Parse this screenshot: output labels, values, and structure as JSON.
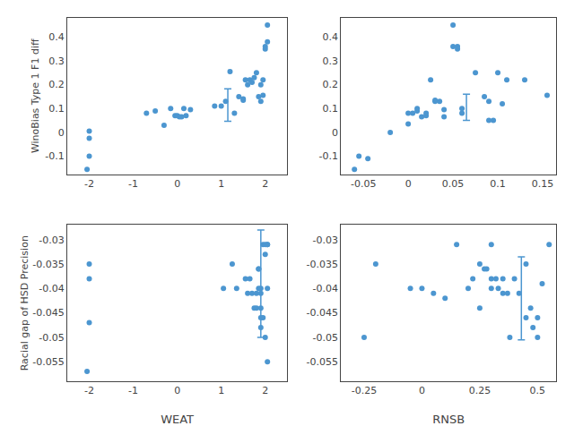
{
  "chart_data": [
    {
      "type": "scatter",
      "ylabel": "WinoBias Type 1 F1 diff",
      "color": "#4C96D0",
      "grid": false,
      "xlim": [
        -2.5,
        2.5
      ],
      "ylim": [
        -0.175,
        0.48
      ],
      "xticks": [
        -2,
        -1,
        0,
        1,
        2
      ],
      "yticks": [
        -0.1,
        0,
        0.1,
        0.2,
        0.3,
        0.4
      ],
      "x": [
        -2.05,
        -2.0,
        -2.0,
        -2.0,
        -0.7,
        -0.5,
        -0.3,
        -0.15,
        -0.05,
        0.0,
        0.05,
        0.1,
        0.15,
        0.2,
        0.3,
        0.85,
        1.0,
        1.1,
        1.2,
        1.3,
        1.4,
        1.5,
        1.5,
        1.55,
        1.6,
        1.65,
        1.7,
        1.75,
        1.8,
        1.85,
        1.9,
        1.9,
        1.95,
        1.95,
        2.0,
        2.0,
        2.05,
        2.05
      ],
      "values": [
        -0.155,
        -0.1,
        -0.025,
        0.005,
        0.08,
        0.09,
        0.03,
        0.1,
        0.07,
        0.07,
        0.065,
        0.065,
        0.1,
        0.07,
        0.095,
        0.11,
        0.11,
        0.13,
        0.255,
        0.08,
        0.15,
        0.135,
        0.14,
        0.22,
        0.2,
        0.22,
        0.21,
        0.23,
        0.25,
        0.15,
        0.13,
        0.2,
        0.22,
        0.155,
        0.36,
        0.35,
        0.45,
        0.38
      ],
      "error_bar": {
        "x": 1.15,
        "y": 0.115,
        "err": 0.068,
        "color": "#4C96D0"
      }
    },
    {
      "type": "scatter",
      "color": "#4C96D0",
      "grid": false,
      "xlim": [
        -0.075,
        0.165
      ],
      "ylim": [
        -0.175,
        0.48
      ],
      "xticks": [
        -0.05,
        0,
        0.05,
        0.1,
        0.15
      ],
      "yticks": [
        -0.1,
        0,
        0.1,
        0.2,
        0.3,
        0.4
      ],
      "x": [
        -0.06,
        -0.055,
        -0.045,
        -0.02,
        0.0,
        0.0,
        0.005,
        0.01,
        0.01,
        0.015,
        0.02,
        0.02,
        0.025,
        0.03,
        0.03,
        0.035,
        0.04,
        0.04,
        0.05,
        0.05,
        0.055,
        0.055,
        0.06,
        0.06,
        0.075,
        0.085,
        0.09,
        0.09,
        0.095,
        0.1,
        0.105,
        0.11,
        0.13,
        0.155
      ],
      "values": [
        -0.155,
        -0.1,
        -0.11,
        0.0,
        0.035,
        0.08,
        0.08,
        0.09,
        0.1,
        0.065,
        0.07,
        0.08,
        0.22,
        0.13,
        0.135,
        0.13,
        0.065,
        0.095,
        0.45,
        0.36,
        0.35,
        0.36,
        0.1,
        0.08,
        0.25,
        0.15,
        0.05,
        0.13,
        0.05,
        0.25,
        0.12,
        0.22,
        0.22,
        0.155
      ],
      "error_bar": {
        "x": 0.065,
        "y": 0.105,
        "err": 0.055,
        "color": "#4C96D0"
      }
    },
    {
      "type": "scatter",
      "xlabel": "WEAT",
      "ylabel": "Racial gap of HSD Precision",
      "color": "#4C96D0",
      "grid": false,
      "xlim": [
        -2.5,
        2.5
      ],
      "ylim": [
        -0.059,
        -0.027
      ],
      "xticks": [
        -2,
        -1,
        0,
        1,
        2
      ],
      "yticks": [
        -0.055,
        -0.05,
        -0.045,
        -0.04,
        -0.035,
        -0.03
      ],
      "x": [
        -2.05,
        -2.0,
        -2.0,
        -2.0,
        1.05,
        1.25,
        1.35,
        1.55,
        1.6,
        1.65,
        1.7,
        1.75,
        1.8,
        1.8,
        1.85,
        1.85,
        1.85,
        1.9,
        1.9,
        1.9,
        1.9,
        1.9,
        1.95,
        1.95,
        2.0,
        2.0,
        2.0,
        2.05,
        2.05,
        2.05,
        2.05
      ],
      "values": [
        -0.057,
        -0.047,
        -0.038,
        -0.035,
        -0.04,
        -0.035,
        -0.04,
        -0.038,
        -0.041,
        -0.038,
        -0.041,
        -0.044,
        -0.041,
        -0.044,
        -0.04,
        -0.036,
        -0.036,
        -0.04,
        -0.041,
        -0.044,
        -0.046,
        -0.048,
        -0.031,
        -0.046,
        -0.05,
        -0.031,
        -0.033,
        -0.04,
        -0.031,
        -0.055,
        -0.031
      ],
      "error_bar": {
        "x": 1.9,
        "y": -0.039,
        "err": 0.011,
        "color": "#4C96D0"
      }
    },
    {
      "type": "scatter",
      "xlabel": "RNSB",
      "color": "#4C96D0",
      "grid": false,
      "xlim": [
        -0.35,
        0.58
      ],
      "ylim": [
        -0.059,
        -0.027
      ],
      "xticks": [
        -0.25,
        0,
        0.25,
        0.5
      ],
      "yticks": [
        -0.055,
        -0.05,
        -0.045,
        -0.04,
        -0.035,
        -0.03
      ],
      "x": [
        -0.25,
        -0.2,
        -0.05,
        0.0,
        0.05,
        0.1,
        0.15,
        0.2,
        0.22,
        0.25,
        0.25,
        0.27,
        0.28,
        0.3,
        0.3,
        0.3,
        0.32,
        0.33,
        0.35,
        0.35,
        0.37,
        0.38,
        0.4,
        0.42,
        0.45,
        0.45,
        0.47,
        0.48,
        0.5,
        0.5,
        0.52,
        0.55
      ],
      "values": [
        -0.05,
        -0.035,
        -0.04,
        -0.04,
        -0.041,
        -0.042,
        -0.031,
        -0.04,
        -0.038,
        -0.044,
        -0.035,
        -0.036,
        -0.036,
        -0.04,
        -0.038,
        -0.031,
        -0.038,
        -0.04,
        -0.038,
        -0.041,
        -0.041,
        -0.05,
        -0.038,
        -0.041,
        -0.035,
        -0.046,
        -0.044,
        -0.048,
        -0.046,
        -0.05,
        -0.039,
        -0.031
      ],
      "error_bar": {
        "x": 0.43,
        "y": -0.042,
        "err": 0.0085,
        "color": "#4C96D0"
      }
    }
  ]
}
